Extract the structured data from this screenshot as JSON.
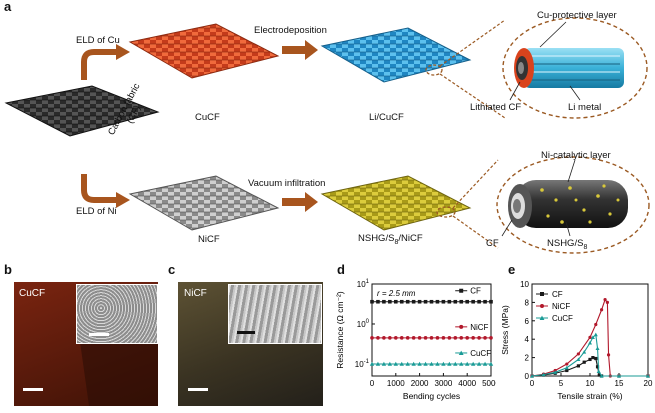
{
  "panels": {
    "a": {
      "label": "a",
      "eld_cu": "ELD of Cu",
      "eld_ni": "ELD of Ni",
      "carbon_fabric": "Carbon fabric",
      "cf_abbrev": "(CF)",
      "electrodeposition": "Electrodeposition",
      "vacuum_infiltration": "Vacuum infiltration",
      "cucf": "CuCF",
      "licucf": "Li/CuCF",
      "nicf": "NiCF",
      "nshg": "NSHG/S",
      "nshg_sub": "8",
      "nshg_suffix": "/NiCF",
      "cu_protective": "Cu-protective layer",
      "lithiated_cf": "Lithiated CF",
      "li_metal": "Li metal",
      "ni_catalytic": "Ni-catalytic layer",
      "cf": "CF",
      "nshg_s8": "NSHG/S",
      "nshg_s8_sub": "8"
    },
    "b": {
      "label": "b",
      "photo_label": "CuCF"
    },
    "c": {
      "label": "c",
      "photo_label": "NiCF"
    },
    "d": {
      "label": "d",
      "annotation": "r = 2.5 mm"
    },
    "e": {
      "label": "e"
    }
  },
  "colors": {
    "cu_orange": "#e2512a",
    "li_blue": "#3aa5dd",
    "ni_gray": "#a9a9a9",
    "nshg_yellow": "#c9b728",
    "arrow_brown": "#a8551e",
    "dashed_brown": "#9b5a23",
    "cf_black": "#1a1a1a",
    "nicf_red": "#b2182b",
    "cucf_teal": "#1a9b96"
  },
  "chart_data": [
    {
      "type": "line",
      "panel": "d",
      "xlabel": "Bending cycles",
      "ylabel": "Resistance (Ω cm⁻²)",
      "xlim": [
        0,
        5000
      ],
      "yscale": "log",
      "ylim": [
        0.05,
        10
      ],
      "xticks": [
        "0",
        "1000",
        "2000",
        "3000",
        "4000",
        "5000"
      ],
      "yticks": [
        {
          "base": "10",
          "exp": "1"
        },
        {
          "base": "10",
          "exp": "0"
        },
        {
          "base": "10",
          "exp": "-1"
        }
      ],
      "legend_placement": "inline",
      "series": [
        {
          "name": "CF",
          "color": "#1a1a1a",
          "marker": "square",
          "x": [
            0,
            250,
            500,
            750,
            1000,
            1250,
            1500,
            1750,
            2000,
            2250,
            2500,
            2750,
            3000,
            3250,
            3500,
            3750,
            4000,
            4250,
            4500,
            4750,
            5000
          ],
          "y": [
            3.6,
            3.6,
            3.6,
            3.6,
            3.6,
            3.6,
            3.6,
            3.6,
            3.6,
            3.6,
            3.6,
            3.6,
            3.6,
            3.6,
            3.6,
            3.6,
            3.6,
            3.6,
            3.6,
            3.6,
            3.6
          ]
        },
        {
          "name": "NiCF",
          "color": "#b2182b",
          "marker": "circle",
          "x": [
            0,
            250,
            500,
            750,
            1000,
            1250,
            1500,
            1750,
            2000,
            2250,
            2500,
            2750,
            3000,
            3250,
            3500,
            3750,
            4000,
            4250,
            4500,
            4750,
            5000
          ],
          "y": [
            0.45,
            0.45,
            0.45,
            0.45,
            0.45,
            0.45,
            0.45,
            0.45,
            0.45,
            0.45,
            0.45,
            0.45,
            0.45,
            0.45,
            0.45,
            0.45,
            0.45,
            0.45,
            0.45,
            0.45,
            0.45
          ]
        },
        {
          "name": "CuCF",
          "color": "#1a9b96",
          "marker": "triangle",
          "x": [
            0,
            250,
            500,
            750,
            1000,
            1250,
            1500,
            1750,
            2000,
            2250,
            2500,
            2750,
            3000,
            3250,
            3500,
            3750,
            4000,
            4250,
            4500,
            4750,
            5000
          ],
          "y": [
            0.1,
            0.1,
            0.1,
            0.1,
            0.1,
            0.1,
            0.1,
            0.1,
            0.1,
            0.1,
            0.1,
            0.1,
            0.1,
            0.1,
            0.1,
            0.1,
            0.1,
            0.1,
            0.1,
            0.1,
            0.1
          ]
        }
      ]
    },
    {
      "type": "line",
      "panel": "e",
      "xlabel": "Tensile strain (%)",
      "ylabel": "Stress (MPa)",
      "xlim": [
        0,
        20
      ],
      "ylim": [
        0,
        10
      ],
      "xticks": [
        0,
        5,
        10,
        15,
        20
      ],
      "yticks": [
        0,
        2,
        4,
        6,
        8,
        10
      ],
      "legend_placement": "top-left",
      "series": [
        {
          "name": "CF",
          "color": "#1a1a1a",
          "marker": "square",
          "x": [
            0,
            2,
            4,
            6,
            8,
            9,
            10,
            10.5,
            11,
            11.3,
            11.6,
            12,
            15,
            20
          ],
          "y": [
            0,
            0.1,
            0.3,
            0.6,
            1.1,
            1.5,
            1.8,
            2.0,
            1.9,
            1.0,
            0.1,
            0,
            0,
            0
          ]
        },
        {
          "name": "NiCF",
          "color": "#b2182b",
          "marker": "circle",
          "x": [
            0,
            2,
            4,
            6,
            8,
            10,
            11,
            12,
            12.6,
            13,
            13.2,
            13.5,
            15,
            20
          ],
          "y": [
            0,
            0.2,
            0.6,
            1.3,
            2.4,
            4.2,
            5.6,
            7.2,
            8.3,
            8.0,
            2.3,
            0,
            0,
            0
          ]
        },
        {
          "name": "CuCF",
          "color": "#1a9b96",
          "marker": "triangle",
          "x": [
            0,
            2,
            4,
            6,
            8,
            9,
            10,
            10.5,
            11,
            11.3,
            11.5,
            12,
            15,
            20
          ],
          "y": [
            0,
            0.15,
            0.4,
            0.9,
            1.8,
            2.6,
            3.6,
            4.2,
            4.5,
            3.0,
            0.5,
            0,
            0,
            0
          ]
        }
      ]
    }
  ]
}
